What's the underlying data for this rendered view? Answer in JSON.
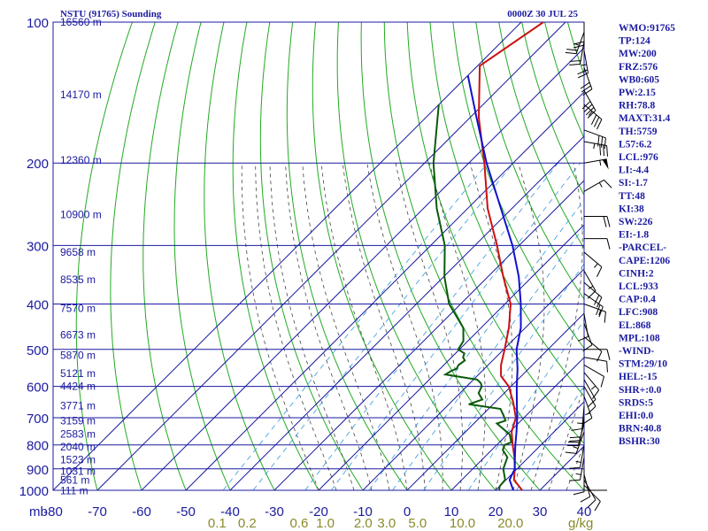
{
  "header": {
    "station": "NSTU (91765) Sounding",
    "time": "0000Z 30 JUL 25"
  },
  "indices": [
    "WMO:91765",
    "TP:124",
    "MW:200",
    "FRZ:576",
    "WB0:605",
    "PW:2.15",
    "RH:78.8",
    "MAXT:31.4",
    "TH:5759",
    "L57:6.2",
    "LCL:976",
    "LI:-4.4",
    "SI:-1.7",
    "TT:48",
    "KI:38",
    "SW:226",
    "EI:-1.8",
    "-PARCEL-",
    "CAPE:1206",
    "CINH:2",
    "LCL:933",
    "CAP:0.4",
    "LFC:908",
    "EL:868",
    "MPL:108",
    "-WIND-",
    "STM:29/10",
    "HEL:-15",
    "SHR+:0.0",
    "SRDS:5",
    "EHI:0.0",
    "BRN:40.8",
    "BSHR:30"
  ],
  "colors": {
    "frame": "#1a1aa0",
    "isobar": "#1a1aa0",
    "isotherm": "#1a1aa0",
    "dry_adiabat": "#22aa22",
    "moist_adiabat": "#444444",
    "mixing_ratio": "#3399dd",
    "temperature": "#cc1111",
    "dewpoint": "#0a5a0a",
    "parcel": "#1111cc",
    "wind": "#000000"
  },
  "chart_data": {
    "type": "skew-t",
    "pressure_unit": "mb",
    "pressure_axis": {
      "scale": "log",
      "range": [
        1000,
        100
      ]
    },
    "temperature_axis": {
      "range": [
        -80,
        40
      ],
      "skewed": true
    },
    "pressure_labels": [
      "100",
      "200",
      "300",
      "400",
      "500",
      "600",
      "700",
      "800",
      "900",
      "1000"
    ],
    "pressure_ticks": [
      100,
      200,
      300,
      400,
      500,
      600,
      700,
      800,
      900,
      1000
    ],
    "height_labels": [
      {
        "p": 100,
        "label": "16560 m"
      },
      {
        "p": 143,
        "label": "14170 m"
      },
      {
        "p": 197,
        "label": "12360 m"
      },
      {
        "p": 258,
        "label": "10900 m"
      },
      {
        "p": 310,
        "label": "9658 m"
      },
      {
        "p": 355,
        "label": "8535 m"
      },
      {
        "p": 409,
        "label": "7570 m"
      },
      {
        "p": 466,
        "label": "6673 m"
      },
      {
        "p": 515,
        "label": "5870 m"
      },
      {
        "p": 563,
        "label": "5121 m"
      },
      {
        "p": 600,
        "label": "4424 m"
      },
      {
        "p": 660,
        "label": "3771 m"
      },
      {
        "p": 711,
        "label": "3159 m"
      },
      {
        "p": 759,
        "label": "2583 m"
      },
      {
        "p": 808,
        "label": "2040 m"
      },
      {
        "p": 860,
        "label": "1523 m"
      },
      {
        "p": 910,
        "label": "1031 m"
      },
      {
        "p": 951,
        "label": "561 m"
      },
      {
        "p": 1002,
        "label": "111 m"
      }
    ],
    "temp_axis_labels": [
      "-80",
      "-70",
      "-60",
      "-50",
      "-40",
      "-30",
      "-20",
      "-10",
      "0",
      "10",
      "20",
      "30",
      "40"
    ],
    "temp_axis_ticks": [
      -80,
      -70,
      -60,
      -50,
      -40,
      -30,
      -20,
      -10,
      0,
      10,
      20,
      30,
      40
    ],
    "mixing_ratio_labels": [
      "0.1",
      "0.2",
      "0.6",
      "1.0",
      "2.0",
      "3.0",
      "5.0",
      "10.0",
      "20.0"
    ],
    "mixing_ratio_ticks": [
      0.1,
      0.2,
      0.6,
      1.0,
      2.0,
      3.0,
      5.0,
      10.0,
      20.0
    ],
    "mixing_ratio_unit": "g/kg",
    "series": [
      {
        "key": "temperature",
        "points": [
          [
            1000,
            26
          ],
          [
            950,
            21.8
          ],
          [
            900,
            19.5
          ],
          [
            850,
            16.8
          ],
          [
            800,
            13.6
          ],
          [
            750,
            10.4
          ],
          [
            700,
            8.2
          ],
          [
            650,
            4.2
          ],
          [
            600,
            -0.5
          ],
          [
            570,
            -4.6
          ],
          [
            540,
            -7.1
          ],
          [
            500,
            -9.8
          ],
          [
            450,
            -13.7
          ],
          [
            400,
            -18.7
          ],
          [
            350,
            -26.5
          ],
          [
            300,
            -35.0
          ],
          [
            250,
            -45.5
          ],
          [
            200,
            -56.5
          ],
          [
            160,
            -68
          ],
          [
            124,
            -79.5
          ],
          [
            100,
            -75
          ]
        ]
      },
      {
        "key": "dewpoint",
        "points": [
          [
            1000,
            20.8
          ],
          [
            980,
            20.0
          ],
          [
            950,
            19.8
          ],
          [
            900,
            16.9
          ],
          [
            850,
            15.2
          ],
          [
            820,
            12.5
          ],
          [
            800,
            11.8
          ],
          [
            790,
            12.7
          ],
          [
            760,
            10.6
          ],
          [
            720,
            5.2
          ],
          [
            710,
            6.5
          ],
          [
            690,
            4.7
          ],
          [
            670,
            2.7
          ],
          [
            655,
            -5.5
          ],
          [
            640,
            -3.5
          ],
          [
            620,
            -5.8
          ],
          [
            600,
            -6.6
          ],
          [
            590,
            -7.6
          ],
          [
            580,
            -9.2
          ],
          [
            566,
            -17.5
          ],
          [
            556,
            -17.0
          ],
          [
            550,
            -16.3
          ],
          [
            540,
            -16.7
          ],
          [
            528,
            -16.3
          ],
          [
            520,
            -17.4
          ],
          [
            510,
            -18.0
          ],
          [
            500,
            -20.3
          ],
          [
            480,
            -21.0
          ],
          [
            450,
            -24.0
          ],
          [
            400,
            -32.6
          ],
          [
            350,
            -39.8
          ],
          [
            300,
            -46.8
          ],
          [
            250,
            -57.0
          ],
          [
            200,
            -68.0
          ],
          [
            150,
            -80
          ]
        ]
      },
      {
        "key": "parcel",
        "points": [
          [
            1000,
            24.0
          ],
          [
            950,
            20.8
          ],
          [
            900,
            19.5
          ],
          [
            850,
            16.9
          ],
          [
            800,
            14.2
          ],
          [
            750,
            11.5
          ],
          [
            700,
            8.5
          ],
          [
            650,
            5.0
          ],
          [
            600,
            1.3
          ],
          [
            550,
            -2.5
          ],
          [
            500,
            -7.1
          ],
          [
            450,
            -11.0
          ],
          [
            400,
            -16.4
          ],
          [
            350,
            -23.0
          ],
          [
            300,
            -31.5
          ],
          [
            250,
            -42.5
          ],
          [
            200,
            -56.0
          ],
          [
            160,
            -68.5
          ],
          [
            130,
            -80
          ]
        ]
      }
    ],
    "wind_barbs": [
      [
        1000,
        90,
        0
      ],
      [
        975,
        135,
        12
      ],
      [
        950,
        150,
        12
      ],
      [
        925,
        165,
        10
      ],
      [
        900,
        180,
        10
      ],
      [
        850,
        190,
        14
      ],
      [
        800,
        190,
        14
      ],
      [
        750,
        200,
        16
      ],
      [
        720,
        195,
        18
      ],
      [
        700,
        190,
        18
      ],
      [
        660,
        185,
        15
      ],
      [
        630,
        160,
        15
      ],
      [
        600,
        150,
        12
      ],
      [
        580,
        150,
        12
      ],
      [
        560,
        140,
        13
      ],
      [
        540,
        120,
        11
      ],
      [
        520,
        100,
        11
      ],
      [
        500,
        90,
        9
      ],
      [
        470,
        130,
        10
      ],
      [
        440,
        160,
        8
      ],
      [
        420,
        170,
        10
      ],
      [
        400,
        110,
        15
      ],
      [
        380,
        125,
        20
      ],
      [
        360,
        130,
        20
      ],
      [
        340,
        150,
        14
      ],
      [
        310,
        130,
        15
      ],
      [
        290,
        90,
        10
      ],
      [
        260,
        90,
        18
      ],
      [
        230,
        60,
        13
      ],
      [
        200,
        80,
        55
      ],
      [
        180,
        100,
        35
      ],
      [
        170,
        110,
        30
      ],
      [
        150,
        130,
        35
      ],
      [
        140,
        150,
        40
      ],
      [
        125,
        160,
        30
      ],
      [
        115,
        170,
        25
      ],
      [
        110,
        190,
        20
      ],
      [
        105,
        200,
        25
      ],
      [
        100,
        180,
        20
      ],
      [
        97,
        170,
        20
      ]
    ]
  }
}
